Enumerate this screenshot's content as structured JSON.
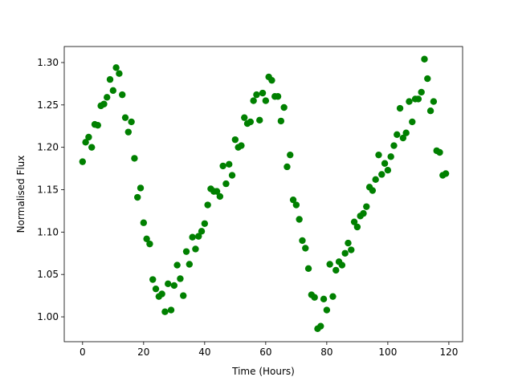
{
  "chart_data": {
    "type": "scatter",
    "x_label": "Time (Hours)",
    "y_label": "Normalised Flux",
    "color": "#008000",
    "x": [
      0,
      1,
      2,
      3,
      4,
      5,
      6,
      7,
      8,
      9,
      10,
      11,
      12,
      13,
      14,
      15,
      16,
      17,
      18,
      19,
      20,
      21,
      22,
      23,
      24,
      25,
      26,
      27,
      28,
      29,
      30,
      31,
      32,
      33,
      34,
      35,
      36,
      37,
      38,
      39,
      40,
      41,
      42,
      43,
      44,
      45,
      46,
      47,
      48,
      49,
      50,
      51,
      52,
      53,
      54,
      55,
      56,
      57,
      58,
      59,
      60,
      61,
      62,
      63,
      64,
      65,
      66,
      67,
      68,
      69,
      70,
      71,
      72,
      73,
      74,
      75,
      76,
      77,
      78,
      79,
      80,
      81,
      82,
      83,
      84,
      85,
      86,
      87,
      88,
      89,
      90,
      91,
      92,
      93,
      94,
      95,
      96,
      97,
      98,
      99,
      100,
      101,
      102,
      103,
      104,
      105,
      106,
      107,
      108,
      109,
      110,
      111,
      112,
      113,
      114,
      115,
      116,
      117,
      118,
      119
    ],
    "values": [
      1.183,
      1.206,
      1.212,
      1.2,
      1.227,
      1.226,
      1.249,
      1.251,
      1.259,
      1.28,
      1.267,
      1.294,
      1.287,
      1.262,
      1.235,
      1.218,
      1.23,
      1.187,
      1.141,
      1.152,
      1.111,
      1.092,
      1.086,
      1.044,
      1.033,
      1.024,
      1.027,
      1.006,
      1.039,
      1.008,
      1.037,
      1.061,
      1.045,
      1.025,
      1.077,
      1.062,
      1.094,
      1.08,
      1.095,
      1.101,
      1.11,
      1.132,
      1.151,
      1.148,
      1.148,
      1.142,
      1.178,
      1.157,
      1.18,
      1.167,
      1.209,
      1.2,
      1.202,
      1.235,
      1.228,
      1.23,
      1.255,
      1.262,
      1.232,
      1.264,
      1.255,
      1.283,
      1.279,
      1.26,
      1.26,
      1.231,
      1.247,
      1.177,
      1.191,
      1.138,
      1.132,
      1.115,
      1.09,
      1.081,
      1.057,
      1.026,
      1.023,
      0.986,
      0.989,
      1.021,
      1.008,
      1.062,
      1.024,
      1.055,
      1.065,
      1.061,
      1.075,
      1.087,
      1.079,
      1.112,
      1.106,
      1.119,
      1.122,
      1.13,
      1.153,
      1.149,
      1.162,
      1.191,
      1.168,
      1.181,
      1.173,
      1.189,
      1.202,
      1.215,
      1.246,
      1.211,
      1.217,
      1.254,
      1.23,
      1.257,
      1.257,
      1.265,
      1.304,
      1.281,
      1.243,
      1.254,
      1.196,
      1.194,
      1.167,
      1.169
    ],
    "xlim": [
      -6,
      124.5
    ],
    "ylim": [
      0.9707,
      1.3189
    ],
    "xticks": [
      0,
      20,
      40,
      60,
      80,
      100,
      120
    ],
    "yticks": [
      {
        "value": 1.0,
        "label": "1.00"
      },
      {
        "value": 1.05,
        "label": "1.05"
      },
      {
        "value": 1.1,
        "label": "1.10"
      },
      {
        "value": 1.15,
        "label": "1.15"
      },
      {
        "value": 1.2,
        "label": "1.20"
      },
      {
        "value": 1.25,
        "label": "1.25"
      },
      {
        "value": 1.3,
        "label": "1.30"
      }
    ]
  }
}
